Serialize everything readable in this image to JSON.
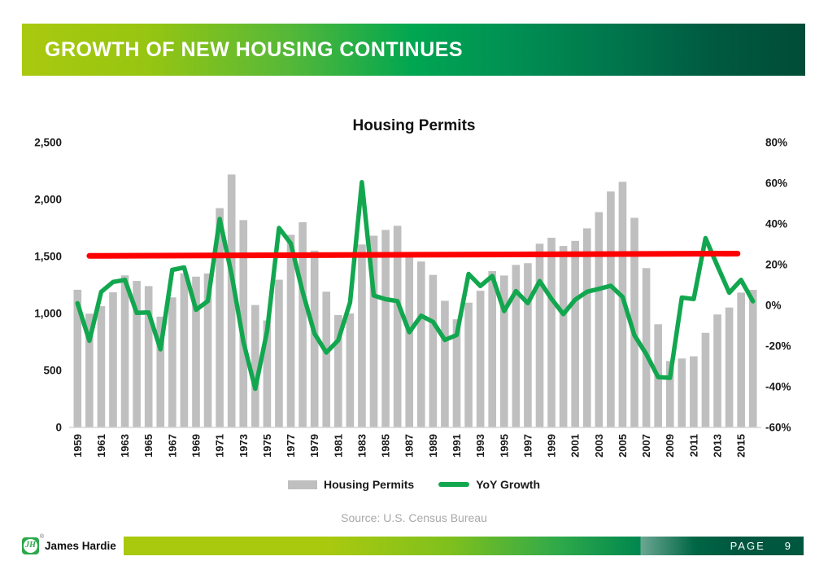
{
  "slide": {
    "header": {
      "title": "GROWTH OF NEW HOUSING CONTINUES"
    },
    "source": "Source: U.S. Census Bureau",
    "footer": {
      "logo_monogram": "JH",
      "logo_reg_mark": "®",
      "logo_text": "James Hardie",
      "page_label": "PAGE",
      "page_number": "9"
    },
    "colors": {
      "header_gradient_start": "#a9c90f",
      "header_gradient_mid": "#00a651",
      "header_gradient_end": "#004c37",
      "footer_page_band": "#00573f",
      "logo_green": "#2ba94c"
    }
  },
  "chart_data": {
    "type": "combo_bar_line",
    "title": "Housing Permits",
    "xlabel": "",
    "ylabel": "",
    "grid": false,
    "legend_position": "bottom",
    "categories": [
      1959,
      1960,
      1961,
      1962,
      1963,
      1964,
      1965,
      1966,
      1967,
      1968,
      1969,
      1970,
      1971,
      1972,
      1973,
      1974,
      1975,
      1976,
      1977,
      1978,
      1979,
      1980,
      1981,
      1982,
      1983,
      1984,
      1985,
      1986,
      1987,
      1988,
      1989,
      1990,
      1991,
      1992,
      1993,
      1994,
      1995,
      1996,
      1997,
      1998,
      1999,
      2000,
      2001,
      2002,
      2003,
      2004,
      2005,
      2006,
      2007,
      2008,
      2009,
      2010,
      2011,
      2012,
      2013,
      2014,
      2015,
      2016
    ],
    "series": [
      {
        "name": "Housing Permits",
        "type": "bar",
        "axis": "left",
        "color": "#bfbfbf",
        "values": [
          1208,
          998,
          1064,
          1186,
          1334,
          1285,
          1240,
          972,
          1141,
          1353,
          1323,
          1351,
          1924,
          2219,
          1819,
          1074,
          939,
          1296,
          1690,
          1801,
          1551,
          1191,
          986,
          1000,
          1605,
          1682,
          1733,
          1769,
          1535,
          1456,
          1338,
          1111,
          949,
          1095,
          1199,
          1372,
          1333,
          1426,
          1441,
          1612,
          1664,
          1592,
          1637,
          1747,
          1889,
          2070,
          2155,
          1839,
          1398,
          905,
          583,
          605,
          624,
          830,
          991,
          1052,
          1183,
          1207
        ]
      },
      {
        "name": "YoY Growth",
        "type": "line",
        "axis": "right",
        "color": "#12a74f",
        "values": [
          1.0,
          -17.4,
          6.6,
          11.5,
          12.5,
          -3.7,
          -3.5,
          -21.6,
          17.4,
          18.6,
          -2.2,
          2.1,
          42.4,
          15.3,
          -18.0,
          -41.0,
          -12.6,
          38.0,
          30.4,
          6.6,
          -13.9,
          -23.2,
          -17.2,
          1.4,
          60.5,
          4.8,
          3.0,
          2.1,
          -13.2,
          -5.1,
          -8.1,
          -17.0,
          -14.6,
          15.4,
          9.5,
          14.4,
          -2.8,
          7.0,
          1.1,
          11.9,
          3.2,
          -4.3,
          2.8,
          6.7,
          8.1,
          9.6,
          4.1,
          -14.7,
          -24.0,
          -35.3,
          -35.6,
          3.8,
          3.1,
          33.0,
          19.4,
          6.2,
          12.5,
          2.0
        ]
      }
    ],
    "trendline": {
      "color": "#ff0000",
      "axis": "right",
      "start": {
        "year": 1960,
        "value": 24.3
      },
      "end": {
        "year": 2014.7,
        "value": 25.4
      }
    },
    "left_axis": {
      "min": 0,
      "max": 2500,
      "ticks": [
        "0",
        "500",
        "1,000",
        "1,500",
        "2,000",
        "2,500"
      ]
    },
    "right_axis": {
      "min": -60,
      "max": 80,
      "ticks": [
        "-60%",
        "-40%",
        "-20%",
        "0%",
        "20%",
        "40%",
        "60%",
        "80%"
      ]
    },
    "x_tick_labels": [
      "1959",
      "1961",
      "1963",
      "1965",
      "1967",
      "1969",
      "1971",
      "1973",
      "1975",
      "1977",
      "1979",
      "1981",
      "1983",
      "1985",
      "1987",
      "1989",
      "1991",
      "1993",
      "1995",
      "1997",
      "1999",
      "2001",
      "2003",
      "2005",
      "2007",
      "2009",
      "2011",
      "2013",
      "2015"
    ],
    "legend": [
      "Housing Permits",
      "YoY Growth"
    ]
  }
}
